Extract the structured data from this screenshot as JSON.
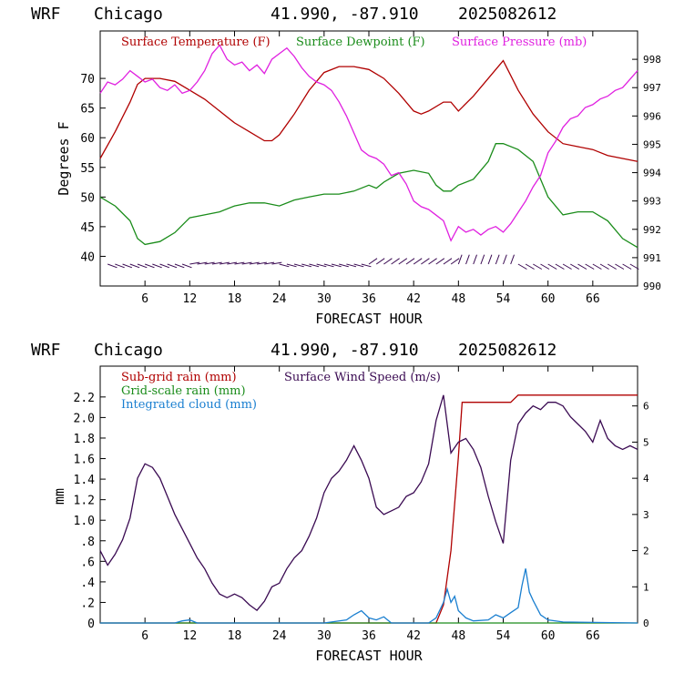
{
  "chart_data": [
    {
      "type": "line",
      "header": {
        "model": "WRF",
        "location": "Chicago",
        "coords": "41.990, -87.910",
        "run": "2025082612"
      },
      "xlabel": "FORECAST HOUR",
      "ylabel": "Degrees F",
      "x_ticks": [
        "6",
        "12",
        "18",
        "24",
        "30",
        "36",
        "42",
        "48",
        "54",
        "60",
        "66"
      ],
      "y_ticks": [
        "40",
        "45",
        "50",
        "55",
        "60",
        "65",
        "70"
      ],
      "y2_ticks": [
        "990",
        "991",
        "992",
        "993",
        "994",
        "995",
        "996",
        "997",
        "998"
      ],
      "xlim": [
        0,
        72
      ],
      "ylim": [
        35,
        78
      ],
      "y2lim": [
        990,
        999
      ],
      "wind_barbs": true,
      "series": [
        {
          "name": "Surface Temperature (F)",
          "axis": "left",
          "color": "#b00000",
          "x": [
            0,
            2,
            4,
            5,
            6,
            8,
            10,
            12,
            14,
            16,
            18,
            20,
            22,
            23,
            24,
            26,
            28,
            30,
            32,
            34,
            36,
            38,
            40,
            42,
            43,
            44,
            46,
            47,
            48,
            50,
            52,
            54,
            56,
            58,
            60,
            62,
            64,
            66,
            68,
            70,
            72
          ],
          "y": [
            56.5,
            61,
            66,
            69,
            70,
            70,
            69.5,
            68,
            66.5,
            64.5,
            62.5,
            61,
            59.5,
            59.5,
            60.5,
            64,
            68,
            71,
            72,
            72,
            71.5,
            70,
            67.5,
            64.5,
            64,
            64.5,
            66,
            66,
            64.5,
            67,
            70,
            73,
            68,
            64,
            61,
            59,
            58.5,
            58,
            57,
            56.5,
            56
          ]
        },
        {
          "name": "Surface Dewpoint (F)",
          "axis": "left",
          "color": "#1a8c1a",
          "x": [
            0,
            2,
            4,
            5,
            6,
            8,
            10,
            12,
            14,
            16,
            18,
            20,
            22,
            24,
            26,
            28,
            30,
            32,
            34,
            36,
            37,
            38,
            40,
            42,
            44,
            45,
            46,
            47,
            48,
            50,
            52,
            53,
            54,
            56,
            58,
            60,
            62,
            64,
            66,
            68,
            70,
            72
          ],
          "y": [
            50,
            48.5,
            46,
            43,
            42,
            42.5,
            44,
            46.5,
            47,
            47.5,
            48.5,
            49,
            49,
            48.5,
            49.5,
            50,
            50.5,
            50.5,
            51,
            52,
            51.5,
            52.5,
            54,
            54.5,
            54,
            52,
            51,
            51,
            52,
            53,
            56,
            59,
            59,
            58,
            56,
            50,
            47,
            47.5,
            47.5,
            46,
            43,
            41.5
          ]
        },
        {
          "name": "Surface Pressure (mb)",
          "axis": "right",
          "color": "#e020e0",
          "x": [
            0,
            1,
            2,
            3,
            4,
            5,
            6,
            7,
            8,
            9,
            10,
            11,
            12,
            13,
            14,
            15,
            16,
            17,
            18,
            19,
            20,
            21,
            22,
            23,
            24,
            25,
            26,
            27,
            28,
            29,
            30,
            31,
            32,
            33,
            34,
            35,
            36,
            37,
            38,
            39,
            40,
            41,
            42,
            43,
            44,
            45,
            46,
            47,
            48,
            49,
            50,
            51,
            52,
            53,
            54,
            55,
            56,
            57,
            58,
            59,
            60,
            61,
            62,
            63,
            64,
            65,
            66,
            67,
            68,
            69,
            70,
            71,
            72
          ],
          "y": [
            996.8,
            997.2,
            997.1,
            997.3,
            997.6,
            997.4,
            997.2,
            997.3,
            997.0,
            996.9,
            997.1,
            996.8,
            996.9,
            997.2,
            997.6,
            998.2,
            998.5,
            998.0,
            997.8,
            997.9,
            997.6,
            997.8,
            997.5,
            998.0,
            998.2,
            998.4,
            998.1,
            997.7,
            997.4,
            997.2,
            997.1,
            996.9,
            996.5,
            996.0,
            995.4,
            994.8,
            994.6,
            994.5,
            994.3,
            993.9,
            994.0,
            993.6,
            993.0,
            992.8,
            992.7,
            992.5,
            992.3,
            991.6,
            992.1,
            991.9,
            992.0,
            991.8,
            992.0,
            992.1,
            991.9,
            992.2,
            992.6,
            993.0,
            993.5,
            993.9,
            994.7,
            995.1,
            995.6,
            995.9,
            996.0,
            996.3,
            996.4,
            996.6,
            996.7,
            996.9,
            997.0,
            997.3,
            997.6
          ]
        }
      ]
    },
    {
      "type": "line",
      "header": {
        "model": "WRF",
        "location": "Chicago",
        "coords": "41.990, -87.910",
        "run": "2025082612"
      },
      "xlabel": "FORECAST HOUR",
      "ylabel": "mm",
      "x_ticks": [
        "6",
        "12",
        "18",
        "24",
        "30",
        "36",
        "42",
        "48",
        "54",
        "60",
        "66"
      ],
      "y_ticks": [
        "0",
        ".2",
        ".4",
        ".6",
        ".8",
        "1.0",
        "1.2",
        "1.4",
        "1.6",
        "1.8",
        "2.0",
        "2.2"
      ],
      "y2_ticks": [
        "0",
        "1",
        "2",
        "3",
        "4",
        "5",
        "6"
      ],
      "xlim": [
        0,
        72
      ],
      "ylim": [
        0,
        2.5
      ],
      "y2lim": [
        0,
        7.1
      ],
      "series": [
        {
          "name": "Sub-grid rain (mm)",
          "axis": "right",
          "color": "#b00000",
          "x": [
            0,
            45,
            46,
            47,
            48,
            48.5,
            49,
            53,
            54,
            55,
            56,
            57,
            72
          ],
          "y": [
            0,
            0,
            0.5,
            2.0,
            4.6,
            6.1,
            6.1,
            6.1,
            6.1,
            6.1,
            6.3,
            6.3,
            6.3
          ]
        },
        {
          "name": "Grid-scale rain (mm)",
          "axis": "left",
          "color": "#1a8c1a",
          "x": [
            0,
            72
          ],
          "y": [
            0,
            0
          ]
        },
        {
          "name": "Integrated cloud (mm)",
          "axis": "left",
          "color": "#1a7fd0",
          "x": [
            0,
            10,
            11,
            12,
            13,
            30,
            33,
            34,
            35,
            36,
            37,
            38,
            39,
            44,
            45,
            46,
            46.5,
            47,
            47.5,
            48,
            49,
            50,
            52,
            53,
            54,
            55,
            56,
            56.5,
            57,
            57.5,
            58,
            59,
            60,
            62,
            72
          ],
          "y": [
            0,
            0,
            0.02,
            0.03,
            0,
            0,
            0.03,
            0.08,
            0.12,
            0.05,
            0.03,
            0.06,
            0,
            0,
            0.05,
            0.2,
            0.33,
            0.2,
            0.26,
            0.12,
            0.05,
            0.02,
            0.03,
            0.08,
            0.05,
            0.1,
            0.15,
            0.36,
            0.53,
            0.3,
            0.22,
            0.08,
            0.03,
            0.01,
            0
          ]
        },
        {
          "name": "Surface Wind Speed (m/s)",
          "axis": "right",
          "color": "#3a0a52",
          "x": [
            0,
            1,
            2,
            3,
            4,
            5,
            6,
            7,
            8,
            9,
            10,
            11,
            12,
            13,
            14,
            15,
            16,
            17,
            18,
            19,
            20,
            21,
            22,
            23,
            24,
            25,
            26,
            27,
            28,
            29,
            30,
            31,
            32,
            33,
            34,
            35,
            36,
            37,
            38,
            39,
            40,
            41,
            42,
            43,
            44,
            45,
            46,
            47,
            48,
            49,
            50,
            51,
            52,
            53,
            54,
            55,
            56,
            57,
            58,
            59,
            60,
            61,
            62,
            63,
            64,
            65,
            66,
            67,
            68,
            69,
            70,
            71,
            72
          ],
          "y": [
            2.0,
            1.6,
            1.9,
            2.3,
            2.9,
            4.0,
            4.4,
            4.3,
            4.0,
            3.5,
            3.0,
            2.6,
            2.2,
            1.8,
            1.5,
            1.1,
            0.8,
            0.7,
            0.8,
            0.7,
            0.5,
            0.35,
            0.6,
            1.0,
            1.1,
            1.5,
            1.8,
            2.0,
            2.4,
            2.9,
            3.6,
            4.0,
            4.2,
            4.5,
            4.9,
            4.5,
            4.0,
            3.2,
            3.0,
            3.1,
            3.2,
            3.5,
            3.6,
            3.9,
            4.4,
            5.6,
            6.3,
            4.7,
            5.0,
            5.1,
            4.8,
            4.3,
            3.5,
            2.8,
            2.2,
            4.5,
            5.5,
            5.8,
            6.0,
            5.9,
            6.1,
            6.1,
            6.0,
            5.7,
            5.5,
            5.3,
            5.0,
            5.6,
            5.1,
            4.9,
            4.8,
            4.9,
            4.8
          ]
        }
      ]
    }
  ]
}
